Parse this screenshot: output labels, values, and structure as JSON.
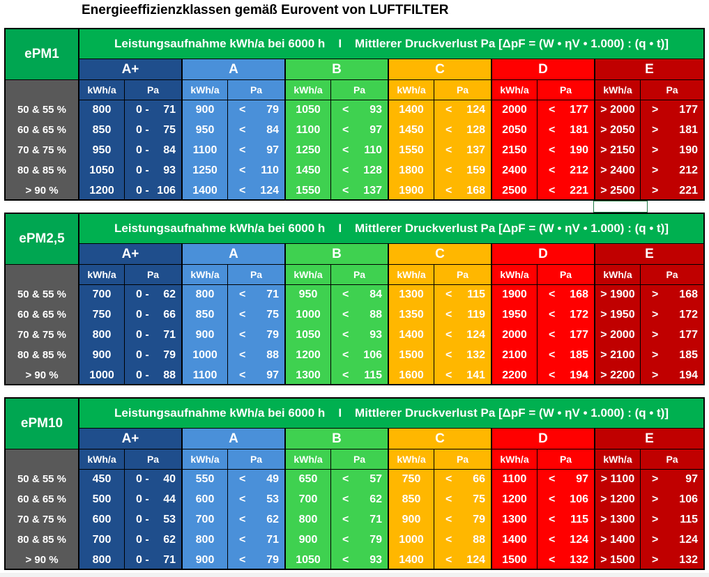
{
  "title": "Energieeffizienzklassen gemäß Eurovent von LUFTFILTER",
  "header": {
    "part1": "Leistungsaufnahme kWh/a bei 6000 h",
    "sep": "I",
    "part2": "Mittlerer Druckverlust Pa [ΔpF  = (W • ηV • 1.000) : (q • t)]"
  },
  "classes": [
    {
      "label": "A+",
      "color": "#1f4e8c",
      "sub_color": "#1f4e8c"
    },
    {
      "label": "A",
      "color": "#4a90d9",
      "sub_color": "#4a90d9"
    },
    {
      "label": "B",
      "color": "#3fd150",
      "sub_color": "#3fd150"
    },
    {
      "label": "C",
      "color": "#ffb700",
      "sub_color": "#ffb700"
    },
    {
      "label": "D",
      "color": "#ff0000",
      "sub_color": "#ff0000"
    },
    {
      "label": "E",
      "color": "#c00000",
      "sub_color": "#c00000"
    }
  ],
  "sub_headers": {
    "kwh": "kWh/a",
    "pa": "Pa"
  },
  "row_labels": [
    "50 & 55 %",
    "60 & 65 %",
    "70 & 75 %",
    "80 & 85 %",
    "> 90 %"
  ],
  "tables": [
    {
      "name": "ePM1",
      "rows": [
        [
          [
            "800",
            "0 -",
            "71"
          ],
          [
            "900",
            "<",
            "79"
          ],
          [
            "1050",
            "<",
            "93"
          ],
          [
            "1400",
            "<",
            "124"
          ],
          [
            "2000",
            "<",
            "177"
          ],
          [
            "> 2000",
            ">",
            "177"
          ]
        ],
        [
          [
            "850",
            "0 -",
            "75"
          ],
          [
            "950",
            "<",
            "84"
          ],
          [
            "1100",
            "<",
            "97"
          ],
          [
            "1450",
            "<",
            "128"
          ],
          [
            "2050",
            "<",
            "181"
          ],
          [
            "> 2050",
            ">",
            "181"
          ]
        ],
        [
          [
            "950",
            "0 -",
            "84"
          ],
          [
            "1100",
            "<",
            "97"
          ],
          [
            "1250",
            "<",
            "110"
          ],
          [
            "1550",
            "<",
            "137"
          ],
          [
            "2150",
            "<",
            "190"
          ],
          [
            "> 2150",
            ">",
            "190"
          ]
        ],
        [
          [
            "1050",
            "0 -",
            "93"
          ],
          [
            "1250",
            "<",
            "110"
          ],
          [
            "1450",
            "<",
            "128"
          ],
          [
            "1800",
            "<",
            "159"
          ],
          [
            "2400",
            "<",
            "212"
          ],
          [
            "> 2400",
            ">",
            "212"
          ]
        ],
        [
          [
            "1200",
            "0 -",
            "106"
          ],
          [
            "1400",
            "<",
            "124"
          ],
          [
            "1550",
            "<",
            "137"
          ],
          [
            "1900",
            "<",
            "168"
          ],
          [
            "2500",
            "<",
            "221"
          ],
          [
            "> 2500",
            ">",
            "221"
          ]
        ]
      ]
    },
    {
      "name": "ePM2,5",
      "rows": [
        [
          [
            "700",
            "0 -",
            "62"
          ],
          [
            "800",
            "<",
            "71"
          ],
          [
            "950",
            "<",
            "84"
          ],
          [
            "1300",
            "<",
            "115"
          ],
          [
            "1900",
            "<",
            "168"
          ],
          [
            "> 1900",
            ">",
            "168"
          ]
        ],
        [
          [
            "750",
            "0 -",
            "66"
          ],
          [
            "850",
            "<",
            "75"
          ],
          [
            "1000",
            "<",
            "88"
          ],
          [
            "1350",
            "<",
            "119"
          ],
          [
            "1950",
            "<",
            "172"
          ],
          [
            "> 1950",
            ">",
            "172"
          ]
        ],
        [
          [
            "800",
            "0 -",
            "71"
          ],
          [
            "900",
            "<",
            "79"
          ],
          [
            "1050",
            "<",
            "93"
          ],
          [
            "1400",
            "<",
            "124"
          ],
          [
            "2000",
            "<",
            "177"
          ],
          [
            "> 2000",
            ">",
            "177"
          ]
        ],
        [
          [
            "900",
            "0 -",
            "79"
          ],
          [
            "1000",
            "<",
            "88"
          ],
          [
            "1200",
            "<",
            "106"
          ],
          [
            "1500",
            "<",
            "132"
          ],
          [
            "2100",
            "<",
            "185"
          ],
          [
            "> 2100",
            ">",
            "185"
          ]
        ],
        [
          [
            "1000",
            "0 -",
            "88"
          ],
          [
            "1100",
            "<",
            "97"
          ],
          [
            "1300",
            "<",
            "115"
          ],
          [
            "1600",
            "<",
            "141"
          ],
          [
            "2200",
            "<",
            "194"
          ],
          [
            "> 2200",
            ">",
            "194"
          ]
        ]
      ]
    },
    {
      "name": "ePM10",
      "rows": [
        [
          [
            "450",
            "0 -",
            "40"
          ],
          [
            "550",
            "<",
            "49"
          ],
          [
            "650",
            "<",
            "57"
          ],
          [
            "750",
            "<",
            "66"
          ],
          [
            "1100",
            "<",
            "97"
          ],
          [
            "> 1100",
            ">",
            "97"
          ]
        ],
        [
          [
            "500",
            "0 -",
            "44"
          ],
          [
            "600",
            "<",
            "53"
          ],
          [
            "700",
            "<",
            "62"
          ],
          [
            "850",
            "<",
            "75"
          ],
          [
            "1200",
            "<",
            "106"
          ],
          [
            "> 1200",
            ">",
            "106"
          ]
        ],
        [
          [
            "600",
            "0 -",
            "53"
          ],
          [
            "700",
            "<",
            "62"
          ],
          [
            "800",
            "<",
            "71"
          ],
          [
            "900",
            "<",
            "79"
          ],
          [
            "1300",
            "<",
            "115"
          ],
          [
            "> 1300",
            ">",
            "115"
          ]
        ],
        [
          [
            "700",
            "0 -",
            "62"
          ],
          [
            "800",
            "<",
            "71"
          ],
          [
            "900",
            "<",
            "79"
          ],
          [
            "1000",
            "<",
            "88"
          ],
          [
            "1400",
            "<",
            "124"
          ],
          [
            "> 1400",
            ">",
            "124"
          ]
        ],
        [
          [
            "800",
            "0 -",
            "71"
          ],
          [
            "900",
            "<",
            "79"
          ],
          [
            "1050",
            "<",
            "93"
          ],
          [
            "1400",
            "<",
            "124"
          ],
          [
            "1500",
            "<",
            "132"
          ],
          [
            "> 1500",
            ">",
            "132"
          ]
        ]
      ]
    }
  ]
}
